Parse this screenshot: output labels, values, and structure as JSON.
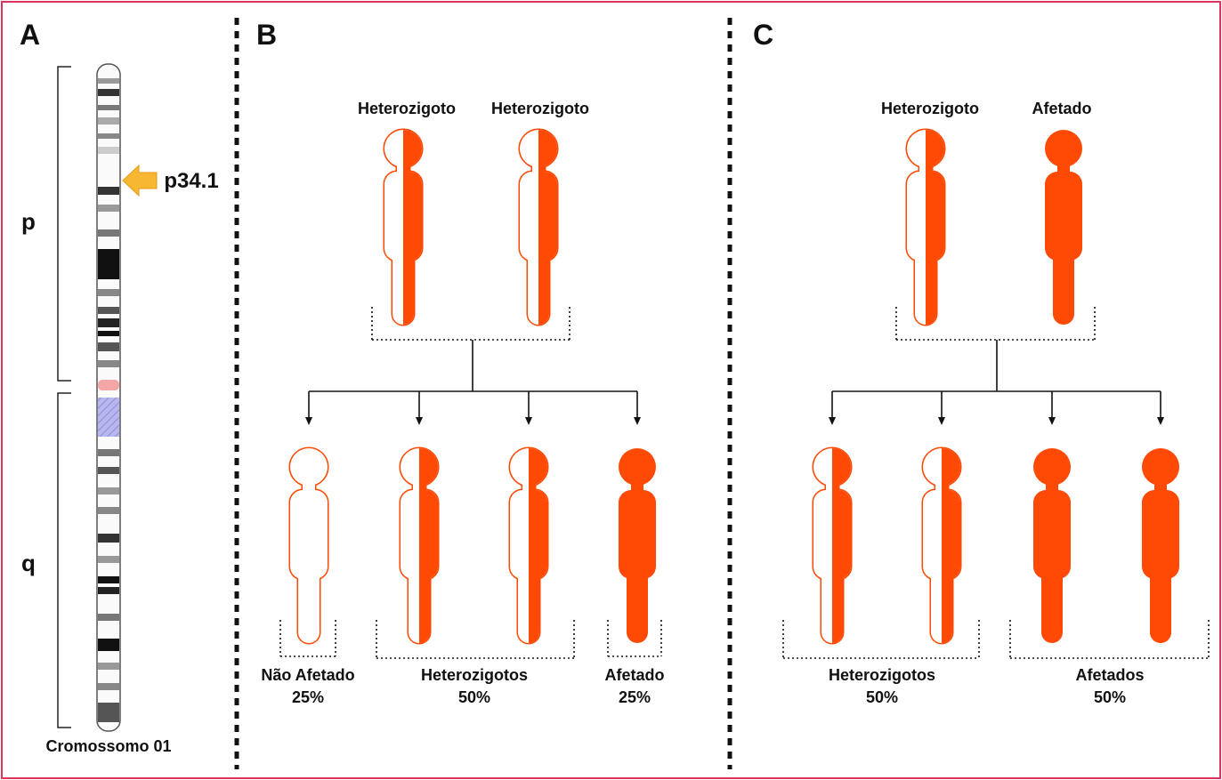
{
  "panel_a": {
    "letter": "A",
    "p_label": "p",
    "q_label": "q",
    "locus": "p34.1",
    "caption": "Cromossomo 01"
  },
  "panel_b": {
    "letter": "B",
    "parents": [
      "Heterozigoto",
      "Heterozigoto"
    ],
    "children_groups": [
      {
        "label": "Não Afetado",
        "percent": "25%"
      },
      {
        "label": "Heterozigotos",
        "percent": "50%"
      },
      {
        "label": "Afetado",
        "percent": "25%"
      }
    ]
  },
  "panel_c": {
    "letter": "C",
    "parents": [
      "Heterozigoto",
      "Afetado"
    ],
    "children_groups": [
      {
        "label": "Heterozigotos",
        "percent": "50%"
      },
      {
        "label": "Afetados",
        "percent": "50%"
      }
    ]
  }
}
